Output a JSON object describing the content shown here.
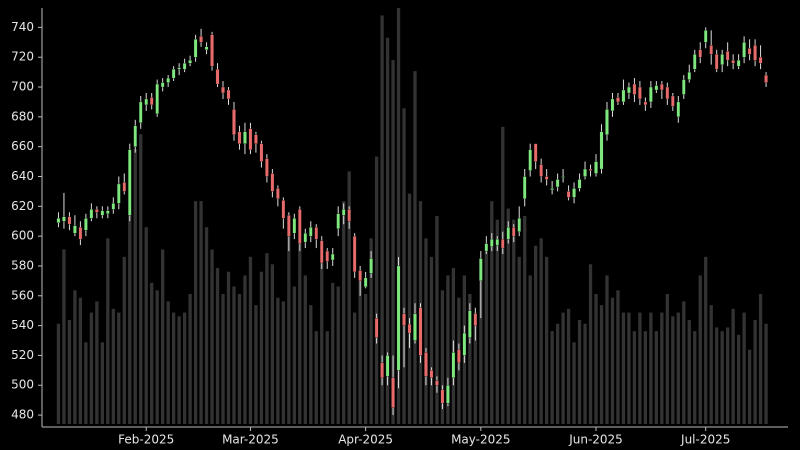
{
  "chart_data": {
    "type": "candlestick",
    "open": [
      609,
      610,
      613,
      602,
      606,
      604,
      612,
      618,
      614,
      615,
      618,
      622,
      636,
      614,
      660,
      676,
      688,
      693,
      682,
      700,
      703,
      706,
      712,
      712,
      716,
      720,
      734,
      725,
      735,
      712,
      700,
      698,
      685,
      670,
      662,
      672,
      668,
      662,
      652,
      642,
      632,
      624,
      614,
      602,
      618,
      596,
      600,
      606,
      597,
      590,
      584,
      605,
      614,
      618,
      600,
      577,
      566,
      575,
      545,
      515,
      506,
      505,
      510,
      548,
      541,
      530,
      552,
      522,
      510,
      503,
      497,
      488,
      505,
      524,
      520,
      532,
      548,
      570,
      590,
      593,
      594,
      598,
      598,
      606,
      603,
      625,
      644,
      662,
      648,
      640,
      631,
      633,
      640,
      630,
      626,
      632,
      640,
      645,
      642,
      645,
      668,
      684,
      693,
      690,
      696,
      702,
      700,
      690,
      690,
      698,
      702,
      700,
      694,
      680,
      695,
      705,
      712,
      725,
      730,
      728,
      722,
      715,
      724,
      718,
      714,
      720,
      726,
      728,
      720,
      708
    ],
    "high": [
      616,
      629,
      616,
      614,
      610,
      615,
      622,
      620,
      620,
      620,
      626,
      640,
      642,
      662,
      678,
      694,
      696,
      696,
      705,
      706,
      708,
      714,
      716,
      719,
      721,
      735,
      739,
      730,
      737,
      716,
      704,
      700,
      690,
      674,
      676,
      676,
      670,
      664,
      655,
      645,
      634,
      626,
      616,
      615,
      620,
      605,
      610,
      608,
      600,
      592,
      592,
      620,
      622,
      620,
      602,
      580,
      576,
      590,
      548,
      520,
      522,
      520,
      586,
      552,
      545,
      555,
      555,
      525,
      512,
      506,
      500,
      505,
      530,
      528,
      540,
      555,
      552,
      590,
      600,
      602,
      600,
      603,
      610,
      608,
      620,
      645,
      662,
      662,
      652,
      645,
      637,
      642,
      645,
      634,
      636,
      642,
      650,
      648,
      655,
      675,
      690,
      696,
      696,
      705,
      703,
      706,
      704,
      693,
      704,
      704,
      704,
      703,
      696,
      694,
      708,
      715,
      725,
      730,
      740,
      738,
      725,
      725,
      730,
      722,
      722,
      734,
      732,
      732,
      728,
      710
    ],
    "low": [
      606,
      605,
      604,
      600,
      594,
      600,
      610,
      612,
      612,
      612,
      615,
      618,
      628,
      610,
      656,
      672,
      684,
      685,
      680,
      697,
      700,
      704,
      708,
      710,
      714,
      717,
      727,
      722,
      711,
      700,
      692,
      688,
      664,
      658,
      655,
      655,
      656,
      646,
      636,
      626,
      620,
      605,
      590,
      598,
      590,
      592,
      596,
      592,
      578,
      578,
      580,
      600,
      608,
      605,
      572,
      560,
      565,
      572,
      528,
      500,
      500,
      480,
      498,
      512,
      525,
      528,
      515,
      500,
      500,
      495,
      484,
      486,
      500,
      510,
      515,
      528,
      530,
      545,
      588,
      590,
      590,
      588,
      595,
      596,
      600,
      620,
      640,
      645,
      636,
      634,
      628,
      630,
      636,
      624,
      622,
      630,
      638,
      640,
      640,
      642,
      664,
      680,
      688,
      688,
      692,
      690,
      688,
      684,
      686,
      696,
      692,
      688,
      684,
      676,
      692,
      703,
      710,
      716,
      726,
      715,
      710,
      710,
      714,
      712,
      712,
      716,
      718,
      714,
      712,
      700
    ],
    "close": [
      612,
      613,
      608,
      607,
      598,
      612,
      618,
      616,
      617,
      617,
      622,
      635,
      630,
      658,
      674,
      690,
      692,
      688,
      702,
      703,
      706,
      712,
      713,
      716,
      718,
      732,
      730,
      727,
      714,
      702,
      696,
      692,
      668,
      662,
      670,
      658,
      662,
      650,
      640,
      630,
      625,
      612,
      600,
      612,
      595,
      602,
      606,
      598,
      582,
      583,
      588,
      615,
      618,
      610,
      576,
      570,
      572,
      585,
      532,
      505,
      520,
      485,
      580,
      540,
      535,
      548,
      520,
      506,
      505,
      500,
      488,
      500,
      522,
      515,
      535,
      550,
      540,
      585,
      595,
      598,
      598,
      592,
      606,
      600,
      612,
      640,
      658,
      650,
      640,
      638,
      632,
      638,
      640,
      626,
      632,
      638,
      645,
      644,
      650,
      670,
      685,
      692,
      690,
      698,
      700,
      695,
      692,
      688,
      700,
      701,
      698,
      692,
      687,
      690,
      705,
      710,
      722,
      720,
      738,
      722,
      712,
      722,
      718,
      716,
      718,
      730,
      722,
      718,
      716,
      703
    ],
    "volume": [
      27,
      47,
      28,
      36,
      34,
      22,
      30,
      33,
      22,
      50,
      31,
      30,
      45,
      57,
      74,
      78,
      53,
      38,
      36,
      47,
      33,
      30,
      29,
      30,
      35,
      60,
      60,
      53,
      47,
      42,
      35,
      41,
      37,
      35,
      40,
      45,
      32,
      41,
      46,
      43,
      34,
      33,
      55,
      37,
      50,
      40,
      32,
      25,
      45,
      25,
      38,
      37,
      60,
      68,
      30,
      40,
      35,
      50,
      72,
      110,
      104,
      98,
      112,
      85,
      62,
      95,
      60,
      50,
      45,
      56,
      36,
      40,
      42,
      34,
      40,
      35,
      30,
      40,
      48,
      60,
      55,
      80,
      58,
      55,
      45,
      56,
      40,
      48,
      50,
      45,
      25,
      27,
      30,
      31,
      22,
      28,
      27,
      43,
      35,
      32,
      40,
      34,
      36,
      30,
      30,
      25,
      30,
      25,
      30,
      25,
      30,
      35,
      29,
      30,
      33,
      28,
      25,
      40,
      45,
      32,
      26,
      25,
      26,
      31,
      24,
      30,
      20,
      28,
      35,
      27
    ],
    "up_color": "#7ee87e",
    "down_color": "#e86b6b",
    "volume_color": "#333333",
    "xlim": [
      -3,
      133
    ],
    "xticks": [
      {
        "value": 16,
        "label": "Feb-2025"
      },
      {
        "value": 35,
        "label": "Mar-2025"
      },
      {
        "value": 56,
        "label": "Apr-2025"
      },
      {
        "value": 77,
        "label": "May-2025"
      },
      {
        "value": 98,
        "label": "Jun-2025"
      },
      {
        "value": 118,
        "label": "Jul-2025"
      }
    ],
    "ylim": [
      472,
      753
    ],
    "yticks": [
      480,
      500,
      520,
      540,
      560,
      580,
      600,
      620,
      640,
      660,
      680,
      700,
      720,
      740
    ]
  }
}
